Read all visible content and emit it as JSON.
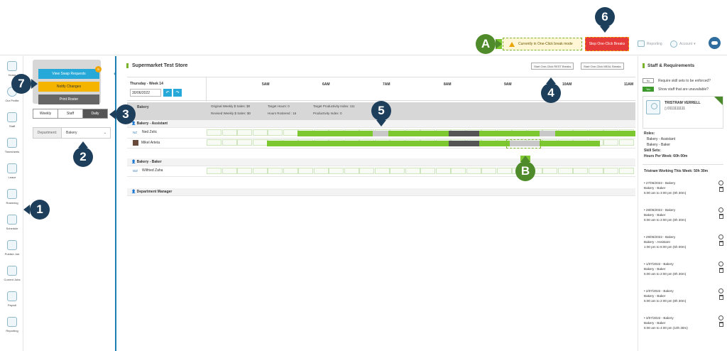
{
  "topbar": {
    "oneclick_banner": "Currently in One-Click break mode",
    "stop_button": "Stop One-Click Breaks",
    "reporting": "Reporting",
    "account": "Account"
  },
  "callouts": {
    "c1": "1",
    "c2": "2",
    "c3": "3",
    "c4": "4",
    "c5": "5",
    "c6": "6",
    "c7": "7",
    "cA": "A",
    "cB": "B"
  },
  "leftnav": [
    {
      "label": "Home",
      "icon": "home-icon"
    },
    {
      "label": "Our Profile",
      "icon": "profile-icon"
    },
    {
      "label": "Staff",
      "icon": "staff-icon"
    },
    {
      "label": "Timesheets",
      "icon": "timesheets-icon"
    },
    {
      "label": "Leave",
      "icon": "leave-icon"
    },
    {
      "label": "Rostering",
      "icon": "rostering-icon"
    },
    {
      "label": "Schedule",
      "icon": "schedule-icon"
    },
    {
      "label": "Publish Job",
      "icon": "publish-job-icon"
    },
    {
      "label": "Current Jobs",
      "icon": "current-jobs-icon"
    },
    {
      "label": "Payroll",
      "icon": "payroll-icon"
    },
    {
      "label": "Reporting",
      "icon": "reporting-icon"
    }
  ],
  "leftpanel": {
    "view_swap": "View Swap Requests",
    "swap_count": "6",
    "notify": "Notify Changes",
    "print": "Print Roster",
    "tabs": [
      "Weekly",
      "Staff",
      "Daily"
    ],
    "department_label": "Department:",
    "department_value": "Bakery"
  },
  "main": {
    "store_title": "Supermarket Test Store",
    "rest_breaks": "Start One-Click REST Breaks",
    "meal_breaks": "Start One-Click MEAL Breaks",
    "date_title": "Thursday - Week 14",
    "date_value": "30/06/2022",
    "hours": [
      "5AM",
      "6AM",
      "7AM",
      "8AM",
      "9AM",
      "10AM",
      "11AM"
    ],
    "summary": {
      "dept": "Bakery",
      "orig_sales": "Original Weekly $ Sales: $0",
      "rev_sales": "Revised Weekly $ Sales: $0",
      "target_hours": "Target Hours: 0",
      "hours_rostered": "Hours Rostered : 16",
      "target_prod": "Target Productivity Index: 111",
      "prod": "Productivity Index: 0"
    },
    "roles": [
      {
        "label": "Bakery - Assistant"
      },
      {
        "label": "Bakery - Baker"
      },
      {
        "label": "Department Manager"
      }
    ],
    "staff": [
      {
        "initials": "NZ",
        "name": "Ned Zelic"
      },
      {
        "initials": "",
        "name": "Mikel Arteta"
      },
      {
        "initials": "WZ",
        "name": "Wilfried Zaha"
      }
    ]
  },
  "rightpanel": {
    "title": "Staff & Requirements",
    "no": "No",
    "yes": "Yes",
    "require_skill": "Require skill sets to be enforced?",
    "show_unavailable": "Show staff that are unavailable?",
    "staff_name": "TRISTRAM VERRELL",
    "staff_phone": "0111111111",
    "roles_label": "Roles:",
    "role1": "Bakery - Assistant",
    "role2": "Bakery - Baker",
    "skill_sets": "Skill Sets:",
    "hours_week": "Hours Per Week: 60h 00m",
    "working_title": "Tristram Working This Week: 50h 30m",
    "shifts": [
      {
        "date": "• 27/06/2022 - Bakery",
        "role": "Bakery - Baker",
        "time": "5:00 am to 3:00 pm (9h 30m)"
      },
      {
        "date": "• 28/06/2022 - Bakery",
        "role": "Bakery - Baker",
        "time": "5:00 am to 2:00 pm (8h 30m)"
      },
      {
        "date": "• 29/06/2022 - Bakery",
        "role": "Bakery - Assistant",
        "time": "1:00 pm to 6:00 pm (5h 00m)"
      },
      {
        "date": "• 1/07/2022 - Bakery",
        "role": "Bakery - Baker",
        "time": "5:00 am to 2:00 pm (8h 30m)"
      },
      {
        "date": "• 2/07/2022 - Bakery",
        "role": "Bakery - Baker",
        "time": "5:00 am to 2:00 pm (8h 30m)"
      },
      {
        "date": "• 3/07/2022 - Bakery",
        "role": "Bakery - Baker",
        "time": "5:00 am to 4:00 pm (10h 30m)"
      }
    ]
  }
}
